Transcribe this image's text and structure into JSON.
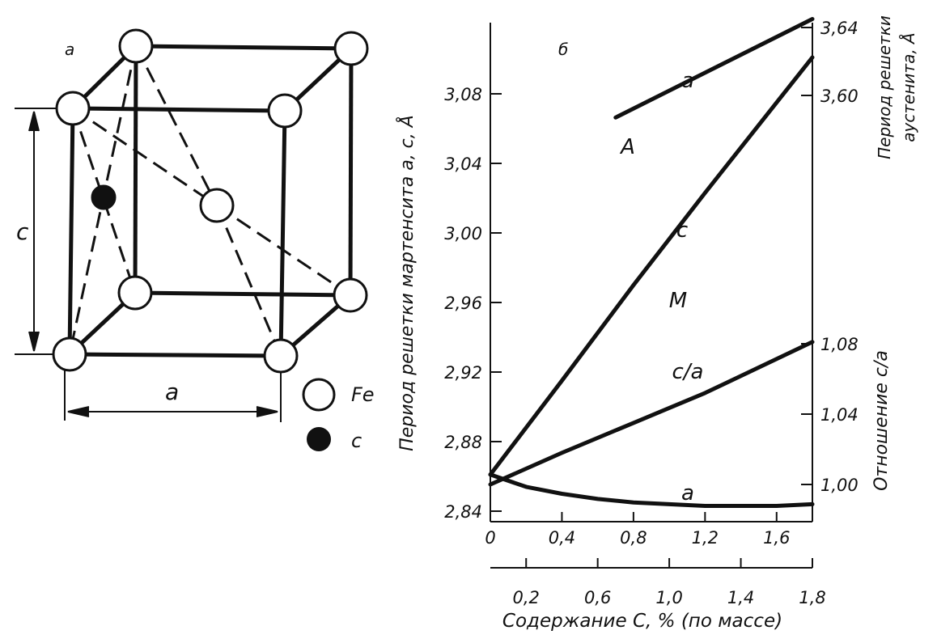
{
  "panel_a": {
    "label": "a",
    "dim_c": "c",
    "dim_a": "a",
    "legend": [
      {
        "symbol": "open-circle",
        "label": "Fe"
      },
      {
        "symbol": "filled-circle",
        "label": "c"
      }
    ]
  },
  "chart_data": {
    "type": "line",
    "panel_label": "б",
    "x": {
      "label": "Содержание C, % (по массе)",
      "range": [
        0,
        1.8
      ],
      "top_ticks": [
        "0",
        "0,4",
        "0,8",
        "1,2",
        "1,6"
      ],
      "top_tick_values": [
        0,
        0.4,
        0.8,
        1.2,
        1.6
      ],
      "bottom_ticks": [
        "0,2",
        "0,6",
        "1,0",
        "1,4",
        "1,8"
      ],
      "bottom_tick_values": [
        0.2,
        0.6,
        1.0,
        1.4,
        1.8
      ]
    },
    "y_left": {
      "label": "Период решетки мартенсита a, c, Å",
      "range": [
        2.84,
        3.12
      ],
      "ticks": [
        "2,84",
        "2,88",
        "2,92",
        "2,96",
        "3,00",
        "3,04",
        "3,08"
      ],
      "tick_values": [
        2.84,
        2.88,
        2.92,
        2.96,
        3.0,
        3.04,
        3.08
      ]
    },
    "y_right_top": {
      "label": "Период решетки аустенита, Å",
      "ticks": [
        "3,60",
        "3,64"
      ],
      "tick_values": [
        3.6,
        3.64
      ]
    },
    "y_right_bottom": {
      "label": "Отношение c/a",
      "ticks": [
        "1,00",
        "1,04",
        "1,08"
      ],
      "tick_values": [
        1.0,
        1.04,
        1.08
      ]
    },
    "series": [
      {
        "name": "a",
        "axis": "y_right_top",
        "points": [
          [
            0.7,
            3.587
          ],
          [
            1.8,
            3.645
          ]
        ]
      },
      {
        "name": "c",
        "axis": "y_left",
        "points": [
          [
            0,
            2.861
          ],
          [
            0.4,
            2.915
          ],
          [
            0.8,
            2.97
          ],
          [
            1.2,
            3.023
          ],
          [
            1.8,
            3.101
          ]
        ]
      },
      {
        "name": "c/a",
        "axis": "y_right_bottom",
        "points": [
          [
            0,
            1.0
          ],
          [
            0.4,
            1.018
          ],
          [
            0.8,
            1.035
          ],
          [
            1.2,
            1.052
          ],
          [
            1.8,
            1.081
          ]
        ]
      },
      {
        "name": "a",
        "axis": "y_left",
        "points": [
          [
            0,
            2.861
          ],
          [
            0.2,
            2.854
          ],
          [
            0.4,
            2.85
          ],
          [
            0.6,
            2.847
          ],
          [
            0.8,
            2.845
          ],
          [
            1.0,
            2.844
          ],
          [
            1.2,
            2.843
          ],
          [
            1.4,
            2.843
          ],
          [
            1.6,
            2.843
          ],
          [
            1.8,
            2.844
          ]
        ]
      }
    ],
    "annotations": [
      {
        "text": "a",
        "near_series": 0
      },
      {
        "text": "A",
        "near_series": 0
      },
      {
        "text": "c",
        "near_series": 1
      },
      {
        "text": "M",
        "near_series": 1
      },
      {
        "text": "c/a",
        "near_series": 2
      },
      {
        "text": "a",
        "near_series": 3
      }
    ]
  }
}
